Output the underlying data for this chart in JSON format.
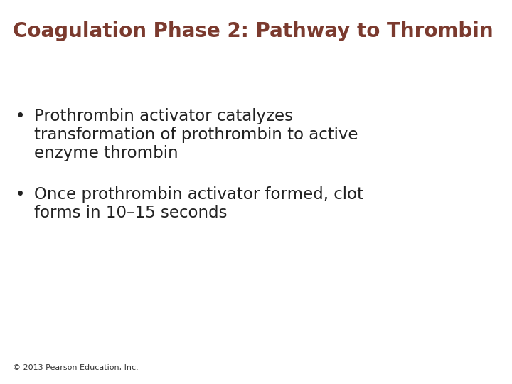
{
  "title": "Coagulation Phase 2: Pathway to Thrombin",
  "title_color": "#7B3A2E",
  "title_fontsize": 20,
  "bullet1_line1": "Prothrombin activator catalyzes",
  "bullet1_line2": "transformation of prothrombin to active",
  "bullet1_line3": "enzyme thrombin",
  "bullet2_line1": "Once prothrombin activator formed, clot",
  "bullet2_line2": "forms in 10–15 seconds",
  "bullet_color": "#222222",
  "bullet_fontsize": 16.5,
  "footer": "© 2013 Pearson Education, Inc.",
  "footer_fontsize": 8,
  "footer_color": "#333333",
  "background_color": "#ffffff"
}
